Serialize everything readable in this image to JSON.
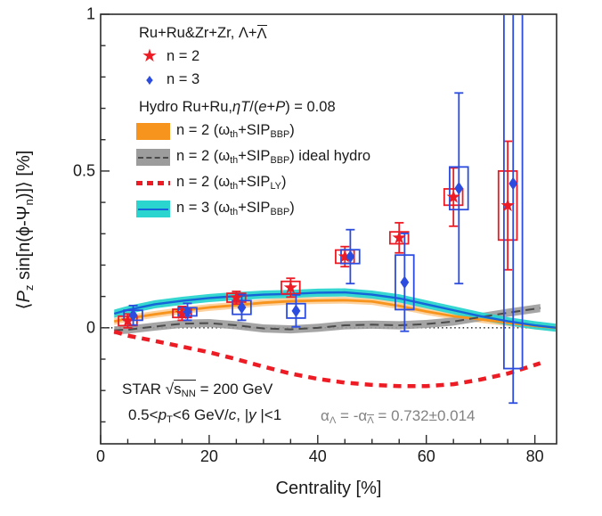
{
  "legend": {
    "data_header": "Ru+Ru&Zr+Zr, Λ+~{Λ}",
    "entries": [
      {
        "marker": "star",
        "label": "n = 2"
      },
      {
        "marker": "diamond",
        "label": "n = 3"
      }
    ],
    "hydro_header": "Hydro Ru+Ru, *{ηT}/(*{e}+*{P}) = 0.08",
    "hydro_entries": [
      {
        "swatch": "orange-band",
        "label": "n = 2 (ω_{th}+SIP_{BBP})"
      },
      {
        "swatch": "gray-band-dashed-line",
        "label": "n = 2 (ω_{th}+SIP_{BBP}) ideal hydro"
      },
      {
        "swatch": "red-dashes",
        "label": "n = 2 (ω_{th}+SIP_{LY})"
      },
      {
        "swatch": "cyan-band-blue-line",
        "label": "n = 3 (ω_{th}+SIP_{BBP})"
      }
    ]
  },
  "annotations": {
    "experiment": "STAR  √~{s_{NN}} = 200 GeV",
    "kinematics": "0.5<*{p}_{T}<6 GeV/*{c}, |*{y} |<1",
    "alpha": "α_{Λ} = -α_{~{Λ}} = 0.732±0.014",
    "alpha_color": "#828282"
  },
  "chart_data": {
    "type": "scatter",
    "title": "",
    "xlabel": "Centrality [%]",
    "ylabel": "⟨*{P}_{z} sin[n(ϕ-Ψ_{n})]⟩ [%]",
    "xlim": [
      0,
      84
    ],
    "ylim": [
      -0.37,
      1.0
    ],
    "x_major_ticks": [
      0,
      20,
      40,
      60,
      80
    ],
    "x_minor_step": 5,
    "y_major_ticks": [
      {
        "v": 0,
        "label": "0"
      },
      {
        "v": 0.5,
        "label": "0.5"
      },
      {
        "v": 1,
        "label": "1"
      }
    ],
    "y_minor_step": 0.1,
    "zero_line": {
      "y": 0,
      "color": "#1a1a1a",
      "style": "dotted"
    },
    "frame_color": "#2b2b2b",
    "curves": [
      {
        "name": "n2-omega-th-SIP-BBP-hydro",
        "legend": "n = 2 (ω_th+SIP_BBP)",
        "band_color": "#F7941D",
        "band_opacity": 0.42,
        "band_halfwidth": 0.011,
        "line_color": "#F7941D",
        "line_width": 2.8,
        "line_dash": null,
        "x": [
          2.5,
          5,
          10,
          15,
          20,
          25,
          30,
          35,
          40,
          45,
          50,
          55,
          60,
          65,
          70,
          75,
          80,
          84
        ],
        "y": [
          0.02,
          0.03,
          0.043,
          0.055,
          0.065,
          0.072,
          0.08,
          0.085,
          0.087,
          0.088,
          0.084,
          0.07,
          0.052,
          0.037,
          0.027,
          0.016,
          0.006,
          0.0
        ]
      },
      {
        "name": "n2-omega-th-SIP-BBP-ideal-hydro",
        "legend": "n = 2 (ω_th+SIP_BBP) ideal hydro",
        "band_color": "#9B9B9B",
        "band_opacity": 0.9,
        "band_halfwidth": 0.013,
        "line_color": "#4B4B4B",
        "line_width": 2.0,
        "line_dash": "10 6",
        "x": [
          2.5,
          5,
          10,
          15,
          20,
          25,
          30,
          35,
          40,
          45,
          50,
          55,
          60,
          65,
          70,
          75,
          81
        ],
        "y": [
          -0.008,
          -0.006,
          0.004,
          0.013,
          0.015,
          0.008,
          -0.002,
          -0.005,
          0.0,
          0.008,
          0.01,
          0.008,
          0.012,
          0.02,
          0.034,
          0.048,
          0.063
        ]
      },
      {
        "name": "n2-omega-th-SIP-LY",
        "legend": "n = 2 (ω_th+SIP_LY)",
        "band_color": null,
        "band_opacity": 0,
        "band_halfwidth": 0,
        "line_color": "#ED1C24",
        "line_width": 4.5,
        "line_dash": "9 7",
        "x": [
          2.5,
          5,
          10,
          15,
          20,
          25,
          30,
          35,
          40,
          45,
          50,
          55,
          60,
          65,
          70,
          75,
          81
        ],
        "y": [
          -0.012,
          -0.025,
          -0.042,
          -0.06,
          -0.078,
          -0.1,
          -0.124,
          -0.146,
          -0.163,
          -0.175,
          -0.182,
          -0.186,
          -0.186,
          -0.18,
          -0.165,
          -0.146,
          -0.113
        ]
      },
      {
        "name": "n3-omega-th-SIP-BBP-hydro",
        "legend": "n = 3 (ω_th+SIP_BBP)",
        "band_color": "#2BD5CF",
        "band_opacity": 0.95,
        "band_halfwidth": 0.013,
        "line_color": "#1565D8",
        "line_width": 2.4,
        "line_dash": null,
        "x": [
          2.5,
          5,
          10,
          15,
          20,
          25,
          30,
          35,
          40,
          45,
          50,
          55,
          60,
          65,
          70,
          75,
          80,
          84
        ],
        "y": [
          0.045,
          0.057,
          0.075,
          0.086,
          0.095,
          0.101,
          0.106,
          0.108,
          0.112,
          0.113,
          0.106,
          0.094,
          0.075,
          0.056,
          0.037,
          0.021,
          0.008,
          0.0
        ]
      }
    ],
    "points": [
      {
        "name": "n2-data",
        "legend": "n = 2",
        "marker": "star",
        "color": "#ED1C24",
        "box_halfwidth_x": 1.7,
        "columns": [
          "centrality",
          "value",
          "stat_err",
          "sys_err"
        ],
        "data": [
          [
            5,
            0.022,
            0.022,
            0.015
          ],
          [
            15,
            0.046,
            0.022,
            0.013
          ],
          [
            25,
            0.096,
            0.02,
            0.014
          ],
          [
            35,
            0.128,
            0.03,
            0.02
          ],
          [
            45,
            0.227,
            0.032,
            0.021
          ],
          [
            55,
            0.287,
            0.048,
            0.019
          ],
          [
            65,
            0.417,
            0.093,
            0.026
          ],
          [
            75,
            0.39,
            0.205,
            0.11
          ]
        ]
      },
      {
        "name": "n3-data",
        "legend": "n = 3",
        "marker": "diamond",
        "color": "#2B4CDF",
        "box_halfwidth_x": 1.7,
        "columns": [
          "centrality",
          "value",
          "stat_err",
          "sys_err"
        ],
        "data": [
          [
            6,
            0.04,
            0.031,
            0.016
          ],
          [
            16,
            0.051,
            0.027,
            0.013
          ],
          [
            26,
            0.065,
            0.041,
            0.022
          ],
          [
            36,
            0.054,
            0.051,
            0.023
          ],
          [
            46,
            0.227,
            0.086,
            0.022
          ],
          [
            56,
            0.145,
            0.156,
            0.087
          ],
          [
            66,
            0.445,
            0.304,
            0.068
          ],
          [
            76,
            0.46,
            0.7,
            0.59
          ]
        ]
      }
    ]
  }
}
